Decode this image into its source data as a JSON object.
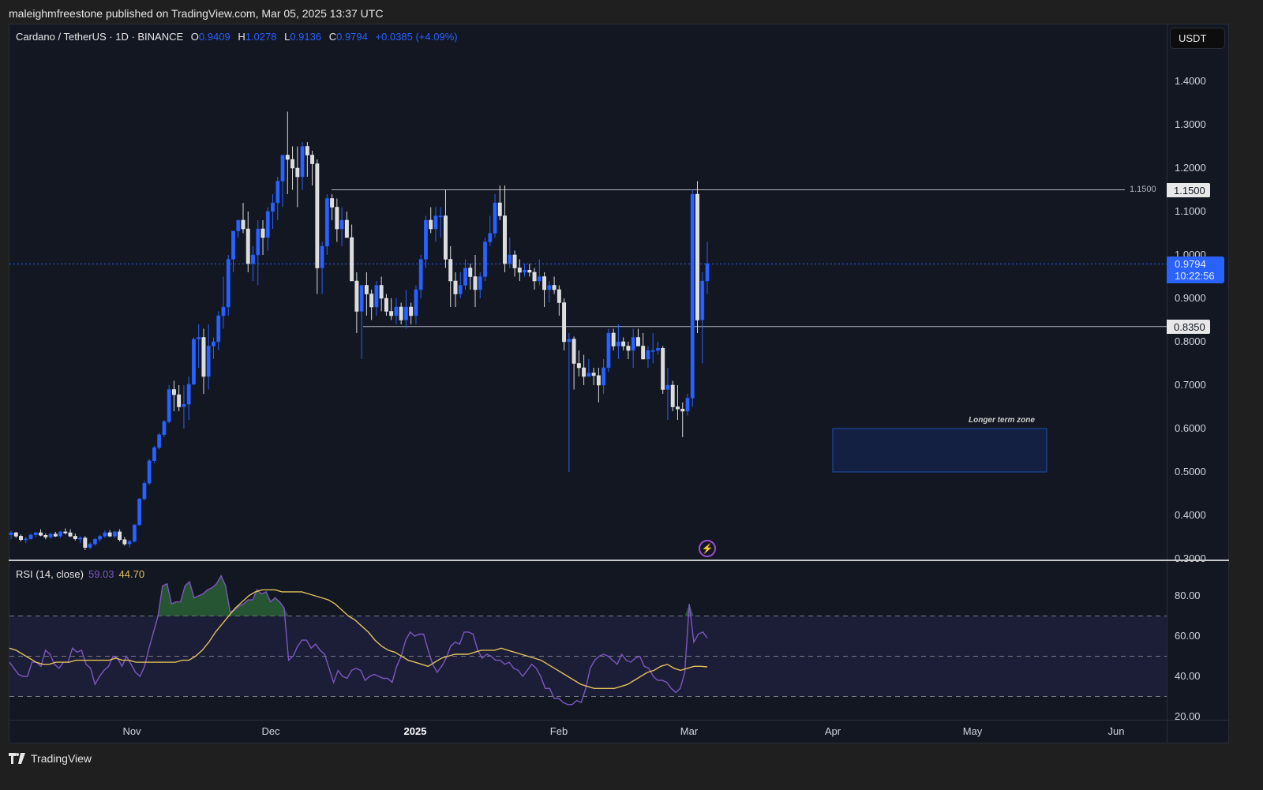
{
  "header": {
    "published": "maleighmfreestone published on TradingView.com, Mar 05, 2025 13:37 UTC"
  },
  "legend": {
    "symbol": "Cardano / TetherUS · 1D · BINANCE",
    "o_label": "O",
    "o": "0.9409",
    "h_label": "H",
    "h": "1.0278",
    "l_label": "L",
    "l": "0.9136",
    "c_label": "C",
    "c": "0.9794",
    "change": "+0.0385 (+4.09%)"
  },
  "currency_button": "USDT",
  "price_axis": {
    "ticks": [
      "1.4000",
      "1.3000",
      "1.2000",
      "1.1000",
      "1.0000",
      "0.9000",
      "0.8000",
      "0.7000",
      "0.6000",
      "0.5000",
      "0.4000",
      "0.3000"
    ],
    "current_price": "0.9794",
    "countdown": "10:22:56",
    "resistance_label": "1.1500",
    "resistance_line_text": "1.1500",
    "support_label": "0.8350"
  },
  "annotation": {
    "zone_label": "Longer term zone"
  },
  "rsi": {
    "title": "RSI (14, close)",
    "value": "59.03",
    "ma_value": "44.70",
    "ticks": [
      "80.00",
      "60.00",
      "40.00",
      "20.00"
    ]
  },
  "time_axis": {
    "ticks": [
      "Nov",
      "Dec",
      "2025",
      "Feb",
      "Mar",
      "Apr",
      "May",
      "Jun"
    ]
  },
  "footer": {
    "brand": "TradingView"
  },
  "colors": {
    "background": "#131722",
    "up": "#2962ff",
    "down": "#d9d9d9",
    "rsi_line": "#7e57c2",
    "rsi_ma": "#e0c15a",
    "zone_fill": "#142042",
    "zone_border": "#1e4fb0"
  },
  "chart_data": [
    {
      "type": "candlestick",
      "title": "Cardano / TetherUS · 1D · BINANCE",
      "ylabel": "USDT",
      "ylim": [
        0.3,
        1.45
      ],
      "x_ticks": [
        "Nov",
        "Dec",
        "2025",
        "Feb",
        "Mar",
        "Apr",
        "May",
        "Jun"
      ],
      "ohlc_last": {
        "open": 0.9409,
        "high": 1.0278,
        "low": 0.9136,
        "close": 0.9794,
        "change": 0.0385,
        "change_pct": 4.09
      },
      "horizontal_lines": [
        {
          "price": 1.15,
          "label": "1.1500"
        },
        {
          "price": 0.835,
          "label": "0.8350"
        }
      ],
      "zones": [
        {
          "label": "Longer term zone",
          "price_low": 0.5,
          "price_high": 0.6
        }
      ],
      "candles": [
        [
          0.355,
          0.365,
          0.345,
          0.36
        ],
        [
          0.36,
          0.362,
          0.348,
          0.352
        ],
        [
          0.352,
          0.356,
          0.34,
          0.344
        ],
        [
          0.344,
          0.35,
          0.336,
          0.346
        ],
        [
          0.346,
          0.358,
          0.344,
          0.355
        ],
        [
          0.355,
          0.362,
          0.35,
          0.36
        ],
        [
          0.36,
          0.368,
          0.352,
          0.354
        ],
        [
          0.354,
          0.358,
          0.345,
          0.35
        ],
        [
          0.35,
          0.36,
          0.346,
          0.357
        ],
        [
          0.357,
          0.362,
          0.35,
          0.352
        ],
        [
          0.352,
          0.364,
          0.348,
          0.362
        ],
        [
          0.362,
          0.37,
          0.356,
          0.36
        ],
        [
          0.36,
          0.368,
          0.35,
          0.352
        ],
        [
          0.352,
          0.358,
          0.342,
          0.346
        ],
        [
          0.346,
          0.352,
          0.336,
          0.348
        ],
        [
          0.348,
          0.352,
          0.32,
          0.326
        ],
        [
          0.326,
          0.338,
          0.322,
          0.334
        ],
        [
          0.334,
          0.348,
          0.33,
          0.345
        ],
        [
          0.345,
          0.355,
          0.34,
          0.352
        ],
        [
          0.352,
          0.365,
          0.348,
          0.36
        ],
        [
          0.36,
          0.366,
          0.35,
          0.352
        ],
        [
          0.352,
          0.364,
          0.348,
          0.362
        ],
        [
          0.362,
          0.368,
          0.34,
          0.344
        ],
        [
          0.344,
          0.35,
          0.33,
          0.334
        ],
        [
          0.334,
          0.344,
          0.326,
          0.34
        ],
        [
          0.34,
          0.38,
          0.338,
          0.378
        ],
        [
          0.378,
          0.44,
          0.376,
          0.438
        ],
        [
          0.438,
          0.48,
          0.434,
          0.474
        ],
        [
          0.474,
          0.53,
          0.47,
          0.526
        ],
        [
          0.526,
          0.56,
          0.52,
          0.556
        ],
        [
          0.556,
          0.59,
          0.552,
          0.586
        ],
        [
          0.586,
          0.62,
          0.58,
          0.616
        ],
        [
          0.616,
          0.7,
          0.612,
          0.69
        ],
        [
          0.69,
          0.71,
          0.64,
          0.678
        ],
        [
          0.678,
          0.7,
          0.64,
          0.65
        ],
        [
          0.65,
          0.7,
          0.6,
          0.656
        ],
        [
          0.656,
          0.72,
          0.62,
          0.702
        ],
        [
          0.702,
          0.81,
          0.7,
          0.806
        ],
        [
          0.806,
          0.84,
          0.74,
          0.81
        ],
        [
          0.81,
          0.83,
          0.68,
          0.72
        ],
        [
          0.72,
          0.84,
          0.69,
          0.79
        ],
        [
          0.79,
          0.81,
          0.76,
          0.8
        ],
        [
          0.8,
          0.87,
          0.78,
          0.86
        ],
        [
          0.86,
          0.95,
          0.83,
          0.88
        ],
        [
          0.88,
          1.0,
          0.86,
          0.99
        ],
        [
          0.99,
          1.05,
          0.96,
          1.055
        ],
        [
          1.055,
          1.08,
          1.04,
          1.08
        ],
        [
          1.08,
          1.12,
          1.05,
          1.06
        ],
        [
          1.06,
          1.1,
          0.96,
          0.98
        ],
        [
          0.98,
          1.02,
          0.94,
          1.0
        ],
        [
          1.0,
          1.08,
          0.93,
          1.06
        ],
        [
          1.06,
          1.08,
          1.0,
          1.04
        ],
        [
          1.04,
          1.11,
          1.01,
          1.1
        ],
        [
          1.1,
          1.14,
          1.06,
          1.12
        ],
        [
          1.12,
          1.18,
          1.08,
          1.17
        ],
        [
          1.17,
          1.2,
          1.11,
          1.23
        ],
        [
          1.23,
          1.33,
          1.14,
          1.22
        ],
        [
          1.22,
          1.25,
          1.15,
          1.2
        ],
        [
          1.2,
          1.25,
          1.11,
          1.18
        ],
        [
          1.18,
          1.26,
          1.15,
          1.25
        ],
        [
          1.25,
          1.26,
          1.18,
          1.23
        ],
        [
          1.23,
          1.24,
          1.16,
          1.21
        ],
        [
          1.21,
          1.22,
          0.91,
          0.97
        ],
        [
          0.97,
          1.03,
          0.91,
          1.02
        ],
        [
          1.02,
          1.14,
          1.0,
          1.13
        ],
        [
          1.13,
          1.14,
          1.08,
          1.11
        ],
        [
          1.11,
          1.13,
          1.03,
          1.06
        ],
        [
          1.06,
          1.11,
          1.02,
          1.08
        ],
        [
          1.08,
          1.1,
          1.04,
          1.04
        ],
        [
          1.04,
          1.07,
          0.94,
          0.94
        ],
        [
          0.94,
          0.96,
          0.82,
          0.87
        ],
        [
          0.87,
          0.93,
          0.76,
          0.93
        ],
        [
          0.93,
          0.96,
          0.86,
          0.91
        ],
        [
          0.91,
          0.92,
          0.85,
          0.88
        ],
        [
          0.88,
          0.94,
          0.86,
          0.93
        ],
        [
          0.93,
          0.95,
          0.87,
          0.9
        ],
        [
          0.9,
          0.91,
          0.86,
          0.87
        ],
        [
          0.87,
          0.9,
          0.85,
          0.86
        ],
        [
          0.86,
          0.9,
          0.84,
          0.88
        ],
        [
          0.88,
          0.89,
          0.84,
          0.85
        ],
        [
          0.85,
          0.92,
          0.83,
          0.88
        ],
        [
          0.88,
          0.89,
          0.84,
          0.86
        ],
        [
          0.86,
          0.93,
          0.84,
          0.92
        ],
        [
          0.92,
          1.0,
          0.9,
          0.99
        ],
        [
          0.99,
          1.09,
          0.97,
          1.08
        ],
        [
          1.08,
          1.11,
          1.05,
          1.06
        ],
        [
          1.06,
          1.11,
          1.03,
          1.09
        ],
        [
          1.09,
          1.11,
          1.04,
          1.09
        ],
        [
          1.09,
          1.15,
          0.97,
          0.99
        ],
        [
          0.99,
          1.02,
          0.88,
          0.94
        ],
        [
          0.94,
          0.96,
          0.88,
          0.91
        ],
        [
          0.91,
          0.96,
          0.9,
          0.93
        ],
        [
          0.93,
          0.99,
          0.92,
          0.97
        ],
        [
          0.97,
          0.98,
          0.92,
          0.95
        ],
        [
          0.95,
          1.0,
          0.88,
          0.92
        ],
        [
          0.92,
          0.96,
          0.9,
          0.95
        ],
        [
          0.95,
          1.04,
          0.94,
          1.03
        ],
        [
          1.03,
          1.09,
          1.02,
          1.05
        ],
        [
          1.05,
          1.14,
          1.04,
          1.12
        ],
        [
          1.12,
          1.16,
          1.08,
          1.09
        ],
        [
          1.09,
          1.16,
          0.96,
          0.98
        ],
        [
          0.98,
          1.04,
          0.97,
          1.0
        ],
        [
          1.0,
          1.01,
          0.95,
          0.97
        ],
        [
          0.97,
          0.99,
          0.94,
          0.96
        ],
        [
          0.96,
          0.98,
          0.95,
          0.965
        ],
        [
          0.965,
          0.98,
          0.95,
          0.96
        ],
        [
          0.96,
          0.97,
          0.92,
          0.94
        ],
        [
          0.94,
          0.99,
          0.93,
          0.95
        ],
        [
          0.95,
          0.96,
          0.88,
          0.92
        ],
        [
          0.92,
          0.94,
          0.89,
          0.93
        ],
        [
          0.93,
          0.95,
          0.91,
          0.92
        ],
        [
          0.92,
          0.93,
          0.86,
          0.89
        ],
        [
          0.89,
          0.9,
          0.78,
          0.8
        ],
        [
          0.8,
          0.82,
          0.5,
          0.806
        ],
        [
          0.806,
          0.812,
          0.69,
          0.75
        ],
        [
          0.75,
          0.78,
          0.72,
          0.74
        ],
        [
          0.74,
          0.77,
          0.7,
          0.72
        ],
        [
          0.72,
          0.76,
          0.72,
          0.728
        ],
        [
          0.728,
          0.74,
          0.7,
          0.722
        ],
        [
          0.722,
          0.74,
          0.66,
          0.7
        ],
        [
          0.7,
          0.76,
          0.68,
          0.74
        ],
        [
          0.74,
          0.83,
          0.73,
          0.82
        ],
        [
          0.82,
          0.83,
          0.78,
          0.79
        ],
        [
          0.79,
          0.84,
          0.76,
          0.8
        ],
        [
          0.8,
          0.81,
          0.78,
          0.79
        ],
        [
          0.79,
          0.8,
          0.76,
          0.78
        ],
        [
          0.78,
          0.83,
          0.74,
          0.81
        ],
        [
          0.81,
          0.83,
          0.79,
          0.79
        ],
        [
          0.79,
          0.82,
          0.76,
          0.76
        ],
        [
          0.76,
          0.79,
          0.74,
          0.78
        ],
        [
          0.78,
          0.82,
          0.75,
          0.78
        ],
        [
          0.78,
          0.8,
          0.77,
          0.785
        ],
        [
          0.785,
          0.79,
          0.68,
          0.69
        ],
        [
          0.69,
          0.74,
          0.62,
          0.7
        ],
        [
          0.7,
          0.71,
          0.64,
          0.65
        ],
        [
          0.65,
          0.7,
          0.62,
          0.645
        ],
        [
          0.645,
          0.66,
          0.58,
          0.64
        ],
        [
          0.64,
          0.68,
          0.63,
          0.67
        ],
        [
          0.67,
          1.15,
          0.65,
          1.14
        ],
        [
          1.14,
          1.17,
          0.82,
          0.85
        ],
        [
          0.85,
          0.96,
          0.75,
          0.94
        ],
        [
          0.94,
          1.03,
          0.91,
          0.98
        ]
      ]
    },
    {
      "type": "line",
      "title": "RSI (14, close)",
      "ylim": [
        17,
        92
      ],
      "bands": {
        "upper": 70,
        "middle": 50,
        "lower": 30
      },
      "series": [
        {
          "name": "RSI",
          "color": "#7e57c2",
          "last": 59.03,
          "values": [
            47,
            44,
            41,
            40,
            40,
            47,
            47,
            45,
            53,
            51,
            46,
            44,
            47,
            47,
            54,
            52,
            53,
            46,
            44,
            36,
            40,
            43,
            45,
            50,
            49,
            45,
            50,
            46,
            42,
            40,
            45,
            54,
            62,
            70,
            85,
            86,
            76,
            77,
            77,
            85,
            87,
            79,
            80,
            81,
            83,
            84,
            86,
            90,
            85,
            72,
            73,
            75,
            76,
            78,
            78,
            83,
            81,
            82,
            77,
            79,
            77,
            74,
            48,
            50,
            55,
            58,
            58,
            54,
            56,
            53,
            51,
            44,
            37,
            43,
            40,
            39,
            43,
            44,
            43,
            38,
            40,
            41,
            40,
            39,
            39,
            37,
            45,
            50,
            58,
            62,
            60,
            61,
            61,
            53,
            46,
            42,
            45,
            49,
            55,
            57,
            56,
            62,
            62,
            61,
            53,
            49,
            51,
            50,
            48,
            48,
            46,
            47,
            44,
            43,
            40,
            43,
            46,
            44,
            40,
            34,
            34,
            29,
            29,
            27,
            26,
            26,
            28,
            27,
            34,
            44,
            48,
            50,
            51,
            50,
            48,
            46,
            51,
            48,
            47,
            49,
            50,
            45,
            44,
            40,
            38,
            38,
            37,
            34,
            32,
            34,
            42,
            76,
            57,
            61,
            62,
            59
          ]
        },
        {
          "name": "RSI-based MA",
          "color": "#e0c15a",
          "last": 44.7,
          "values": [
            54,
            53,
            51,
            49,
            47,
            46,
            46,
            47,
            47,
            47,
            48,
            48,
            48,
            48,
            48,
            48,
            49,
            48,
            48,
            47,
            47,
            47,
            47,
            47,
            47,
            47,
            48,
            48,
            50,
            53,
            57,
            62,
            66,
            70,
            74,
            77,
            80,
            82,
            83,
            83,
            83,
            82,
            82,
            82,
            82,
            81,
            80,
            79,
            78,
            76,
            73,
            70,
            68,
            65,
            62,
            58,
            55,
            53,
            52,
            50,
            48,
            47,
            46,
            45,
            47,
            49,
            50,
            51,
            51,
            51,
            52,
            53,
            53,
            53,
            54,
            53,
            52,
            51,
            50,
            49,
            48,
            46,
            44,
            42,
            40,
            38,
            36,
            35,
            34,
            34,
            34,
            34,
            35,
            36,
            38,
            40,
            42,
            43,
            45,
            46,
            44,
            43,
            44,
            45,
            45,
            44.7
          ]
        }
      ]
    }
  ]
}
